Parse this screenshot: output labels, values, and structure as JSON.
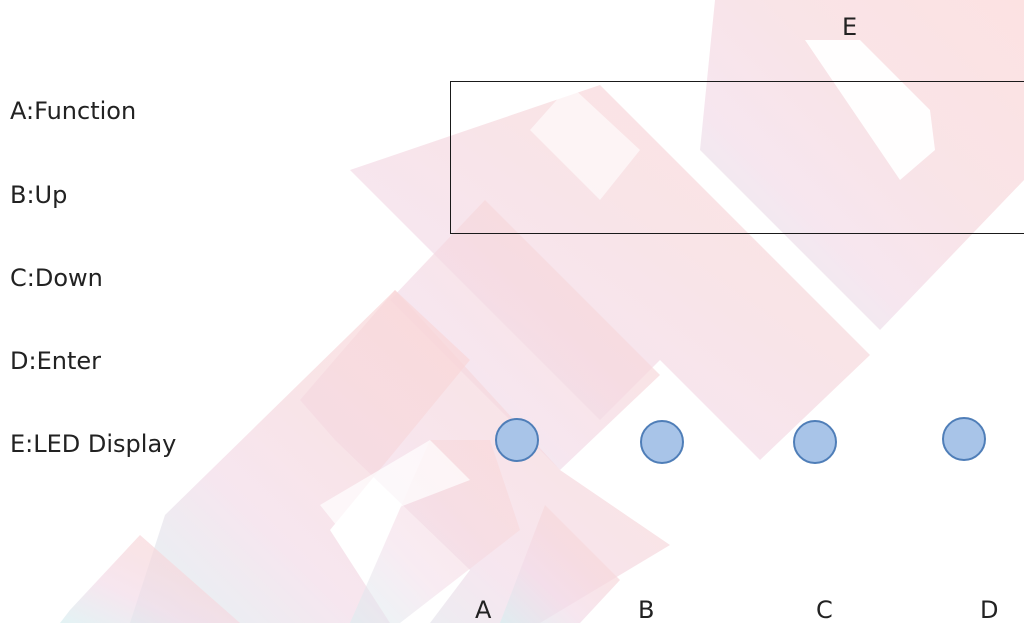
{
  "legend": [
    {
      "key": "A",
      "text": "A:Function"
    },
    {
      "key": "B",
      "text": "B:Up"
    },
    {
      "key": "C",
      "text": "C:Down"
    },
    {
      "key": "D",
      "text": "D:Enter"
    },
    {
      "key": "E",
      "text": "E:LED Display"
    }
  ],
  "display": {
    "label": "E"
  },
  "buttons": [
    {
      "label": "A"
    },
    {
      "label": "B"
    },
    {
      "label": "C"
    },
    {
      "label": "D"
    }
  ],
  "colors": {
    "button_fill": "#a8c4e8",
    "button_stroke": "#4f7eb8",
    "watermark_red": "#f8d4d6",
    "watermark_pink": "#f5dce8",
    "watermark_teal": "#d9eef0"
  }
}
